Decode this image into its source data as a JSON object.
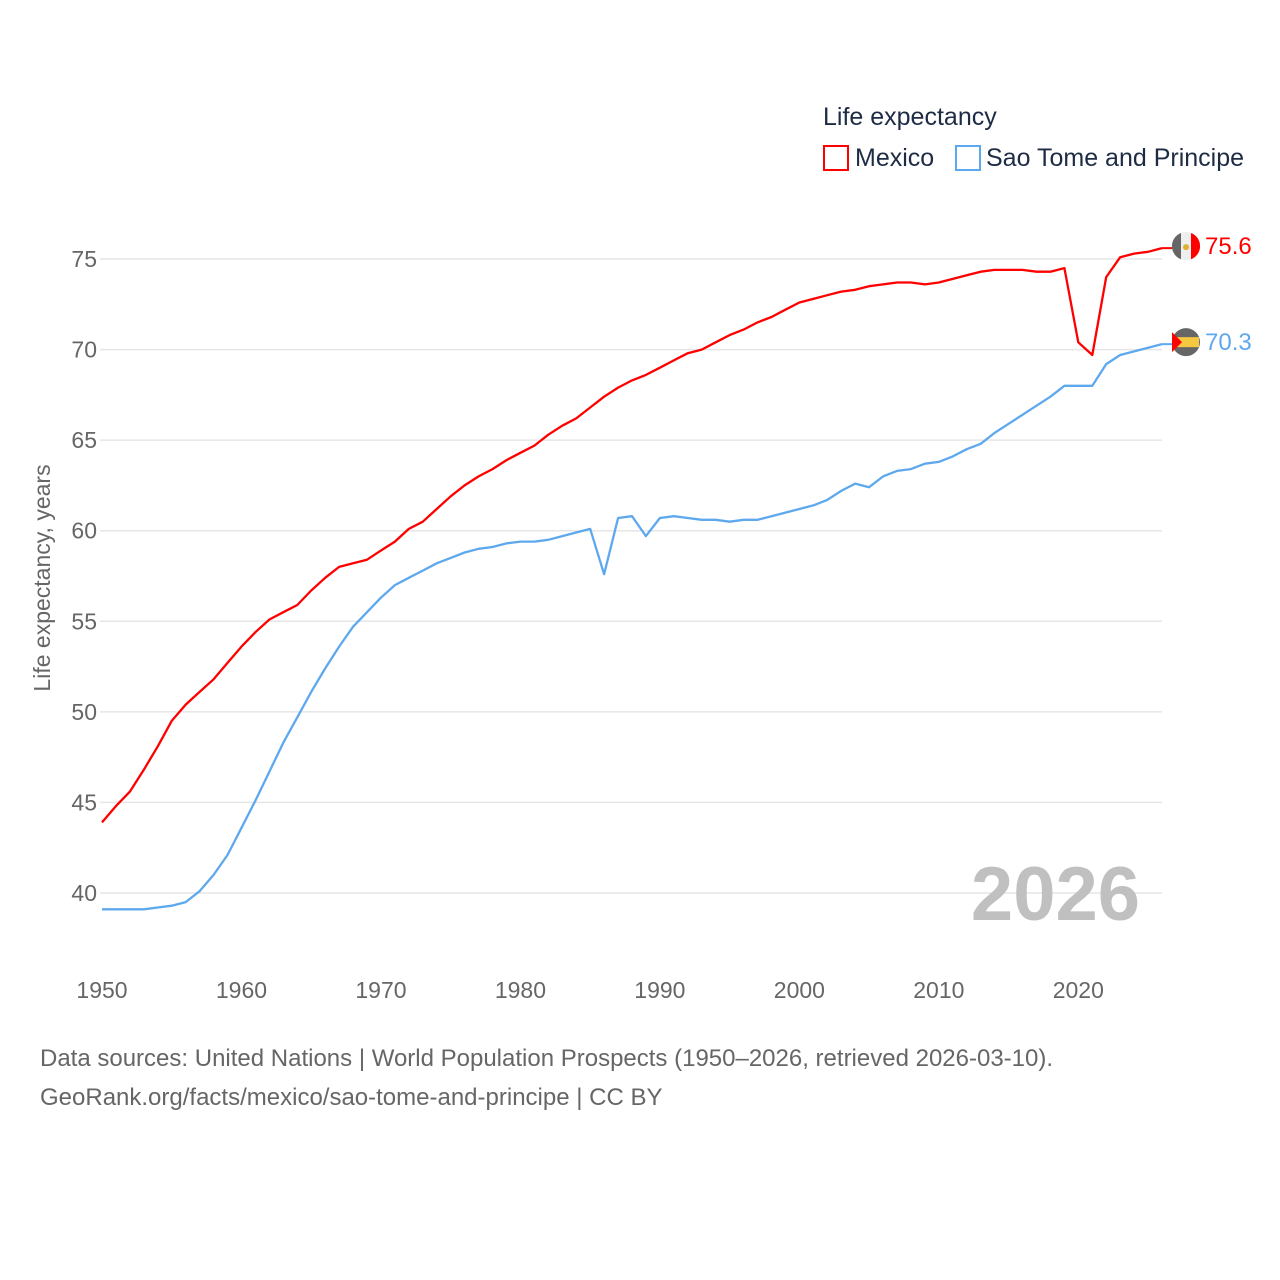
{
  "chart_data": {
    "type": "line",
    "legend_title": "Life expectancy",
    "legend_position": "top-right",
    "ylabel": "Life expectancy, years",
    "xlabel": "",
    "ylim": [
      37.5,
      77
    ],
    "xlim": [
      1950,
      2026
    ],
    "yticks": [
      40,
      45,
      50,
      55,
      60,
      65,
      70,
      75
    ],
    "ytick_labels": [
      "40",
      "45",
      "50",
      "55",
      "60",
      "65",
      "70",
      "75"
    ],
    "xticks": [
      1950,
      1960,
      1970,
      1980,
      1990,
      2000,
      2010,
      2020
    ],
    "xtick_labels": [
      "1950",
      "1960",
      "1970",
      "1980",
      "1990",
      "2000",
      "2010",
      "2020"
    ],
    "grid": true,
    "year_label": "2026",
    "x": [
      1950,
      1951,
      1952,
      1953,
      1954,
      1955,
      1956,
      1957,
      1958,
      1959,
      1960,
      1961,
      1962,
      1963,
      1964,
      1965,
      1966,
      1967,
      1968,
      1969,
      1970,
      1971,
      1972,
      1973,
      1974,
      1975,
      1976,
      1977,
      1978,
      1979,
      1980,
      1981,
      1982,
      1983,
      1984,
      1985,
      1986,
      1987,
      1988,
      1989,
      1990,
      1991,
      1992,
      1993,
      1994,
      1995,
      1996,
      1997,
      1998,
      1999,
      2000,
      2001,
      2002,
      2003,
      2004,
      2005,
      2006,
      2007,
      2008,
      2009,
      2010,
      2011,
      2012,
      2013,
      2014,
      2015,
      2016,
      2017,
      2018,
      2019,
      2020,
      2021,
      2022,
      2023,
      2024,
      2025,
      2026
    ],
    "series": [
      {
        "name": "Mexico",
        "color": "#ff0000",
        "end_label": "75.6",
        "flag": "mexico-flag",
        "values": [
          43.9,
          44.8,
          45.6,
          46.8,
          48.1,
          49.5,
          50.4,
          51.1,
          51.8,
          52.7,
          53.6,
          54.4,
          55.1,
          55.5,
          55.9,
          56.7,
          57.4,
          58.0,
          58.2,
          58.4,
          58.9,
          59.4,
          60.1,
          60.5,
          61.2,
          61.9,
          62.5,
          63.0,
          63.4,
          63.9,
          64.3,
          64.7,
          65.3,
          65.8,
          66.2,
          66.8,
          67.4,
          67.9,
          68.3,
          68.6,
          69.0,
          69.4,
          69.8,
          70.0,
          70.4,
          70.8,
          71.1,
          71.5,
          71.8,
          72.2,
          72.6,
          72.8,
          73.0,
          73.2,
          73.3,
          73.5,
          73.6,
          73.7,
          73.7,
          73.6,
          73.7,
          73.9,
          74.1,
          74.3,
          74.4,
          74.4,
          74.4,
          74.3,
          74.3,
          74.5,
          70.4,
          69.7,
          74.0,
          75.1,
          75.3,
          75.4,
          75.6
        ]
      },
      {
        "name": "Sao Tome and Principe",
        "color": "#5ea8ee",
        "end_label": "70.3",
        "flag": "sao-tome-flag",
        "values": [
          39.1,
          39.1,
          39.1,
          39.1,
          39.2,
          39.3,
          39.5,
          40.1,
          41.0,
          42.1,
          43.6,
          45.1,
          46.7,
          48.3,
          49.7,
          51.1,
          52.4,
          53.6,
          54.7,
          55.5,
          56.3,
          57.0,
          57.4,
          57.8,
          58.2,
          58.5,
          58.8,
          59.0,
          59.1,
          59.3,
          59.4,
          59.4,
          59.5,
          59.7,
          59.9,
          60.1,
          57.6,
          60.7,
          60.8,
          59.7,
          60.7,
          60.8,
          60.7,
          60.6,
          60.6,
          60.5,
          60.6,
          60.6,
          60.8,
          61.0,
          61.2,
          61.4,
          61.7,
          62.2,
          62.6,
          62.4,
          63.0,
          63.3,
          63.4,
          63.7,
          63.8,
          64.1,
          64.5,
          64.8,
          65.4,
          65.9,
          66.4,
          66.9,
          67.4,
          68.0,
          68.0,
          68.0,
          69.2,
          69.7,
          69.9,
          70.1,
          70.3
        ]
      }
    ]
  },
  "footer": {
    "line1": "Data sources: United Nations | World Population Prospects (1950–2026, retrieved 2026-03-10).",
    "line2": "GeoRank.org/facts/mexico/sao-tome-and-principe | CC BY"
  }
}
